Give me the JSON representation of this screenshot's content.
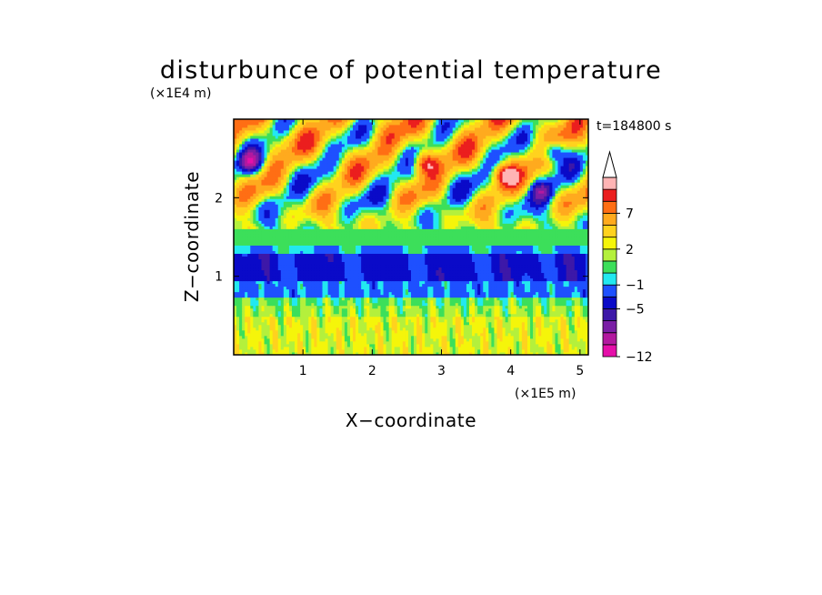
{
  "chart_data": {
    "type": "heatmap",
    "title": "disturbunce of potential temperature",
    "xlabel": "X−coordinate",
    "ylabel": "Z−coordinate",
    "x_unit": "(×1E5 m)",
    "y_unit": "(×1E4 m)",
    "time_label": "t=184800 s",
    "xlim": [
      0,
      5.12
    ],
    "ylim": [
      0,
      3.0
    ],
    "x_ticks": [
      1,
      2,
      3,
      4,
      5
    ],
    "y_ticks": [
      1,
      2
    ],
    "colorbar": {
      "levels": [
        -12,
        -11,
        -9,
        -7,
        -5,
        -3,
        -1,
        0,
        1,
        2,
        3,
        5,
        7,
        9,
        11
      ],
      "colors": [
        "#e50fa9",
        "#b3199f",
        "#7a1ea6",
        "#3d18a8",
        "#0a0ac8",
        "#1e50ff",
        "#22e8f0",
        "#3cdf5a",
        "#b4f03c",
        "#f5f50a",
        "#ffd21e",
        "#ffaa1e",
        "#ff6e14",
        "#eb1e1e",
        "#ffb4b4"
      ],
      "tick_labels": [
        "−12",
        "−5",
        "−1",
        "2",
        "7"
      ],
      "tick_values": [
        -12,
        -5,
        -1,
        2,
        7
      ],
      "extend": "max"
    }
  }
}
